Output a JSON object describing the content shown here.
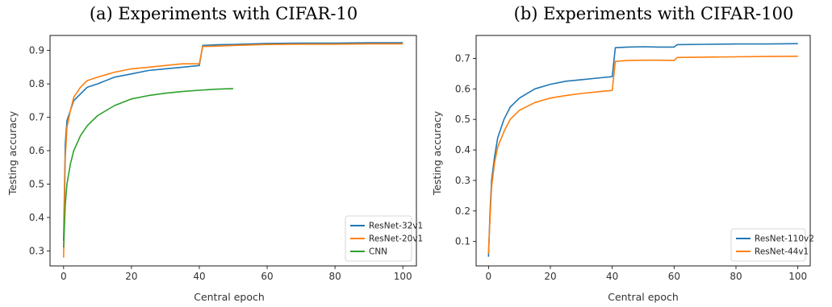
{
  "chart_data": [
    {
      "type": "line",
      "title": "(a) Experiments with CIFAR-10",
      "xlabel": "Central epoch",
      "ylabel": "Testing accuracy",
      "xlim": [
        -4,
        104
      ],
      "ylim": [
        0.255,
        0.945
      ],
      "xticks": [
        0,
        20,
        40,
        60,
        80,
        100
      ],
      "yticks": [
        0.3,
        0.4,
        0.5,
        0.6,
        0.7,
        0.8,
        0.9
      ],
      "xtick_labels": [
        "0",
        "20",
        "40",
        "60",
        "80",
        "100"
      ],
      "ytick_labels": [
        "0.3",
        "0.4",
        "0.5",
        "0.6",
        "0.7",
        "0.8",
        "0.9"
      ],
      "grid": false,
      "legend_position": "lower-right",
      "series": [
        {
          "name": "ResNet-32v1",
          "color": "#1f77b4",
          "x": [
            0,
            0.5,
            1,
            2,
            3,
            5,
            7,
            10,
            15,
            20,
            25,
            30,
            35,
            40,
            41,
            45,
            50,
            60,
            70,
            80,
            90,
            100
          ],
          "y": [
            0.33,
            0.62,
            0.69,
            0.72,
            0.75,
            0.77,
            0.79,
            0.8,
            0.82,
            0.83,
            0.84,
            0.845,
            0.85,
            0.855,
            0.915,
            0.917,
            0.918,
            0.921,
            0.922,
            0.922,
            0.923,
            0.923
          ]
        },
        {
          "name": "ResNet-20v1",
          "color": "#ff7f0e",
          "x": [
            0,
            0.5,
            1,
            2,
            3,
            5,
            7,
            10,
            15,
            20,
            25,
            30,
            35,
            40,
            41,
            45,
            50,
            60,
            70,
            80,
            90,
            100
          ],
          "y": [
            0.28,
            0.58,
            0.67,
            0.72,
            0.76,
            0.79,
            0.81,
            0.82,
            0.835,
            0.845,
            0.85,
            0.855,
            0.86,
            0.86,
            0.912,
            0.913,
            0.915,
            0.918,
            0.919,
            0.919,
            0.92,
            0.92
          ]
        },
        {
          "name": "CNN",
          "color": "#2ca02c",
          "x": [
            0,
            0.5,
            1,
            2,
            3,
            5,
            7,
            10,
            15,
            20,
            25,
            30,
            35,
            40,
            45,
            50
          ],
          "y": [
            0.31,
            0.44,
            0.5,
            0.56,
            0.6,
            0.645,
            0.675,
            0.705,
            0.735,
            0.755,
            0.765,
            0.772,
            0.777,
            0.781,
            0.784,
            0.786
          ]
        }
      ]
    },
    {
      "type": "line",
      "title": "(b) Experiments with CIFAR-100",
      "xlabel": "Central epoch",
      "ylabel": "Testing accuracy",
      "xlim": [
        -4,
        104
      ],
      "ylim": [
        0.02,
        0.775
      ],
      "xticks": [
        0,
        20,
        40,
        60,
        80,
        100
      ],
      "yticks": [
        0.1,
        0.2,
        0.3,
        0.4,
        0.5,
        0.6,
        0.7
      ],
      "xtick_labels": [
        "0",
        "20",
        "40",
        "60",
        "80",
        "100"
      ],
      "ytick_labels": [
        "0.1",
        "0.2",
        "0.3",
        "0.4",
        "0.5",
        "0.6",
        "0.7"
      ],
      "grid": false,
      "legend_position": "lower-right",
      "series": [
        {
          "name": "ResNet-110v2",
          "color": "#1f77b4",
          "x": [
            0,
            0.5,
            1,
            2,
            3,
            5,
            7,
            10,
            15,
            20,
            25,
            30,
            35,
            40,
            41,
            45,
            50,
            55,
            60,
            61,
            70,
            80,
            90,
            100
          ],
          "y": [
            0.05,
            0.2,
            0.3,
            0.38,
            0.44,
            0.5,
            0.54,
            0.57,
            0.6,
            0.615,
            0.625,
            0.63,
            0.635,
            0.64,
            0.735,
            0.737,
            0.738,
            0.737,
            0.737,
            0.745,
            0.746,
            0.747,
            0.747,
            0.748
          ]
        },
        {
          "name": "ResNet-44v1",
          "color": "#ff7f0e",
          "x": [
            0,
            0.5,
            1,
            2,
            3,
            5,
            7,
            10,
            15,
            20,
            25,
            30,
            35,
            40,
            41,
            45,
            50,
            55,
            60,
            61,
            70,
            80,
            90,
            100
          ],
          "y": [
            0.06,
            0.18,
            0.28,
            0.36,
            0.41,
            0.46,
            0.5,
            0.53,
            0.555,
            0.57,
            0.578,
            0.585,
            0.59,
            0.595,
            0.69,
            0.693,
            0.694,
            0.694,
            0.693,
            0.703,
            0.704,
            0.705,
            0.706,
            0.707
          ]
        }
      ]
    }
  ]
}
